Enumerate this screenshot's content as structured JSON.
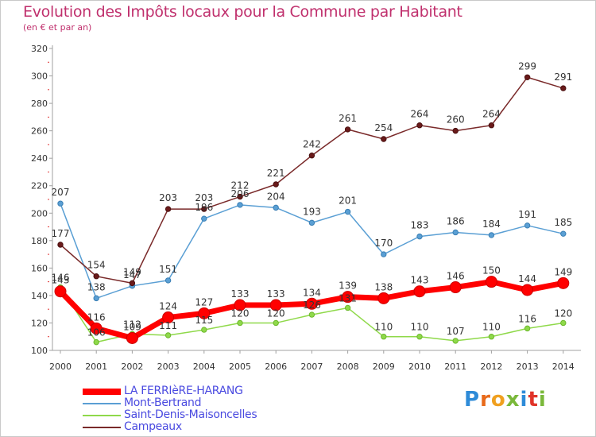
{
  "title": "Evolution des Impôts locaux pour la Commune par Habitant",
  "subtitle": "(en € et par an)",
  "logo": "Proxiti",
  "chart_data": {
    "type": "line",
    "title": "Evolution des Impôts locaux pour la Commune par Habitant",
    "subtitle": "(en € et par an)",
    "xlabel": "",
    "ylabel": "",
    "ylim": [
      100,
      320
    ],
    "yticks": [
      100,
      120,
      140,
      160,
      180,
      200,
      220,
      240,
      260,
      280,
      300,
      320
    ],
    "grid": false,
    "legend_position": "bottom-left",
    "x": [
      "2000",
      "2001",
      "2002",
      "2003",
      "2004",
      "2005",
      "2006",
      "2007",
      "2008",
      "2009",
      "2010",
      "2011",
      "2012",
      "2013",
      "2014"
    ],
    "series": [
      {
        "name": "LA FERRIèRE-HARANG",
        "color": "#ff0000",
        "values": [
          143,
          116,
          109,
          124,
          127,
          133,
          133,
          134,
          139,
          138,
          143,
          146,
          150,
          144,
          149
        ],
        "labels": [
          "143",
          "116",
          "109",
          "124",
          "127",
          "133",
          "133",
          "134",
          "139",
          "138",
          "143",
          "146",
          "150",
          "144",
          "149"
        ]
      },
      {
        "name": "Mont-Bertrand",
        "color": "#5a9fd4",
        "values": [
          207,
          138,
          147,
          151,
          196,
          206,
          204,
          193,
          201,
          170,
          183,
          186,
          184,
          191,
          185
        ],
        "labels": [
          "207",
          "138",
          "147",
          "151",
          "196",
          "206",
          "204",
          "193",
          "201",
          "170",
          "183",
          "186",
          "184",
          "191",
          "185"
        ]
      },
      {
        "name": "Saint-Denis-Maisoncelles",
        "color": "#8fd94a",
        "values": [
          146,
          106,
          112,
          111,
          115,
          120,
          120,
          126,
          131,
          110,
          110,
          107,
          110,
          116,
          120
        ],
        "labels": [
          "146",
          "106",
          "112",
          "111",
          "115",
          "120",
          "120",
          "126",
          "131",
          "110",
          "110",
          "107",
          "110",
          "116",
          "120"
        ]
      },
      {
        "name": "Campeaux",
        "color": "#7a2a2a",
        "values": [
          177,
          154,
          149,
          203,
          203,
          212,
          221,
          242,
          261,
          254,
          264,
          260,
          264,
          299,
          291
        ],
        "labels": [
          "177",
          "154",
          "149",
          "203",
          "203",
          "212",
          "221",
          "242",
          "261",
          "254",
          "264",
          "260",
          "264",
          "299",
          "291"
        ]
      }
    ]
  }
}
